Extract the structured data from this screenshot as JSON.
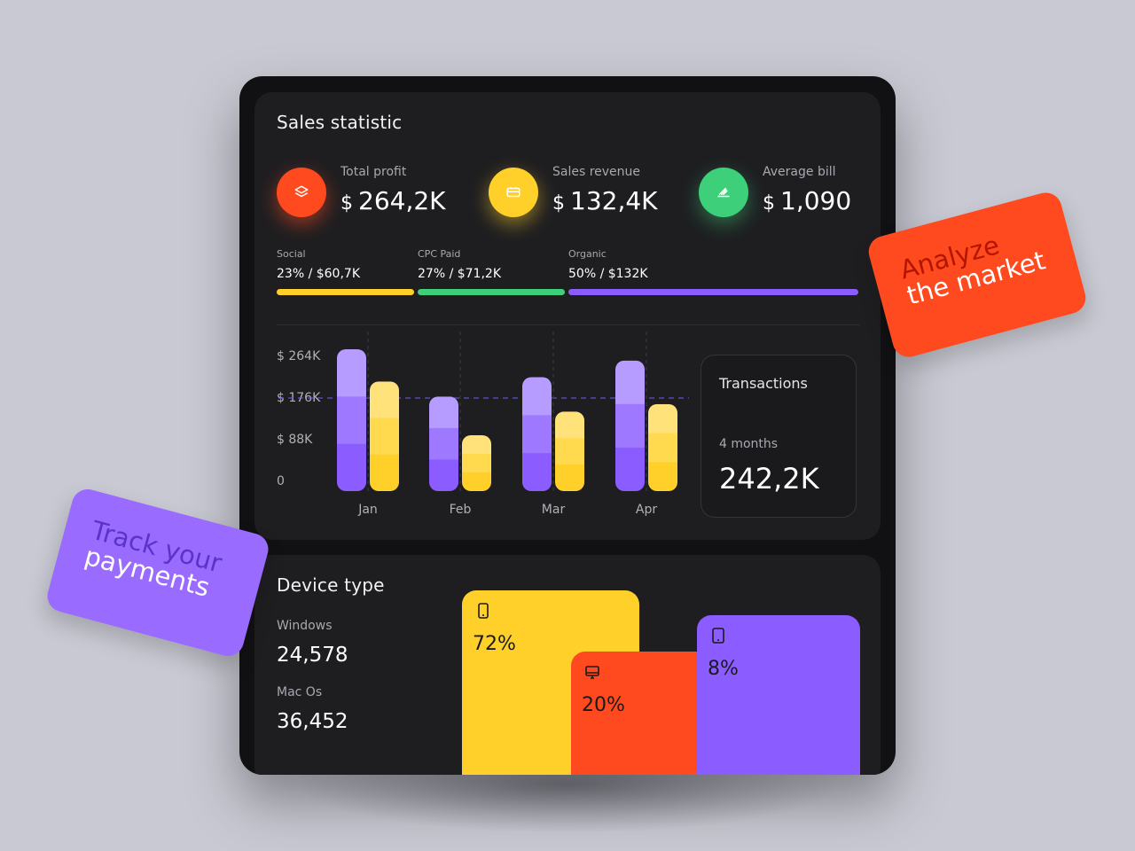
{
  "colors": {
    "red": "#ff4a1f",
    "yellow": "#ffd02a",
    "green": "#3ecf7a",
    "purple": "#8b5cff"
  },
  "sales": {
    "title": "Sales statistic",
    "kpis": [
      {
        "label": "Total profit",
        "currency": "$",
        "value": "264,2K",
        "icon": "layers-icon"
      },
      {
        "label": "Sales revenue",
        "currency": "$",
        "value": "132,4K",
        "icon": "card-icon"
      },
      {
        "label": "Average bill",
        "currency": "$",
        "value": "1,090",
        "icon": "receipt-icon"
      }
    ],
    "channels": [
      {
        "label": "Social",
        "value": "23% / $60,7K",
        "share": 23
      },
      {
        "label": "CPC Paid",
        "value": "27% / $71,2K",
        "share": 27
      },
      {
        "label": "Organic",
        "value": "50% / $132K",
        "share": 50
      }
    ]
  },
  "chart_data": {
    "type": "bar",
    "categories": [
      "Jan",
      "Feb",
      "Mar",
      "Apr"
    ],
    "yticks": [
      "$ 264K",
      "$ 176K",
      "$ 88K",
      "0"
    ],
    "ylim": [
      0,
      264
    ],
    "series": [
      {
        "name": "Purple",
        "values": [
          264,
          176,
          212,
          243
        ]
      },
      {
        "name": "Yellow",
        "values": [
          204,
          104,
          148,
          162
        ]
      }
    ]
  },
  "transactions": {
    "title": "Transactions",
    "period": "4 months",
    "value": "242,2K"
  },
  "device": {
    "title": "Device type",
    "os": [
      {
        "label": "Windows",
        "value": "24,578"
      },
      {
        "label": "Mac Os",
        "value": "36,452"
      }
    ],
    "blocks": [
      {
        "pct": "72%",
        "icon": "phone-icon"
      },
      {
        "pct": "20%",
        "icon": "monitor-icon"
      },
      {
        "pct": "8%",
        "icon": "tablet-icon"
      }
    ]
  },
  "tags": {
    "analyze": {
      "line1": "Analyze",
      "line2": "the market"
    },
    "track": {
      "line1": "Track your",
      "line2": "payments"
    }
  }
}
